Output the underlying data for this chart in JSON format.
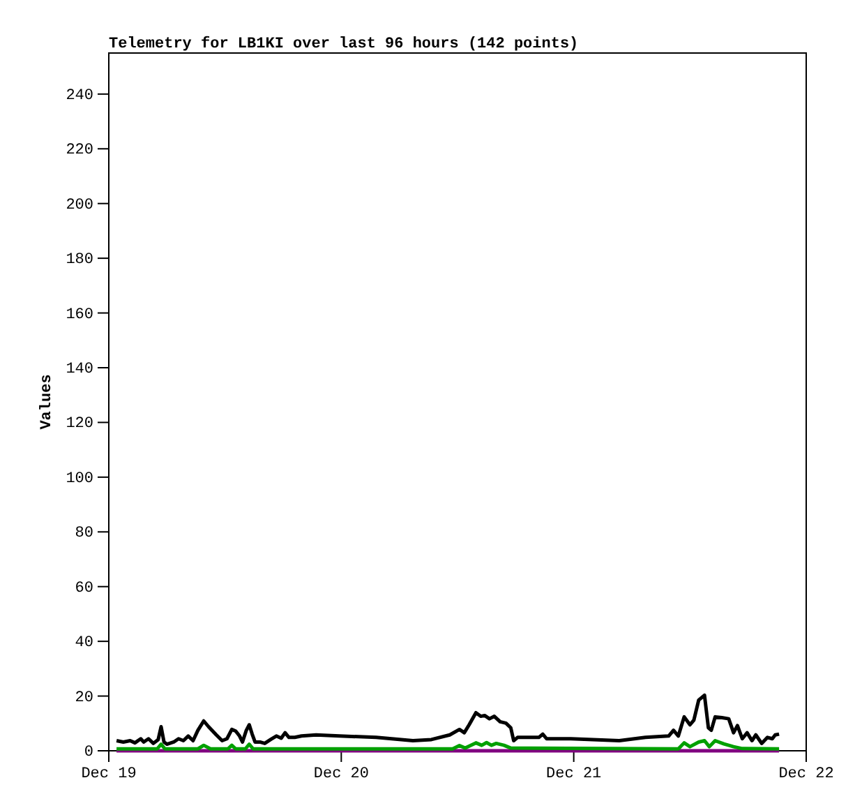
{
  "chart_data": {
    "type": "line",
    "title": "Telemetry for LB1KI over last 96 hours (142 points)",
    "ylabel": "Values",
    "xlim": [
      "--12-19",
      "--12-22"
    ],
    "xticks": [
      {
        "value": "--12-19",
        "label": "Dec 19"
      },
      {
        "value": "--12-20",
        "label": "Dec 20"
      },
      {
        "value": "--12-21",
        "label": "Dec 21"
      },
      {
        "value": "--12-22",
        "label": "Dec 22"
      }
    ],
    "ylim": [
      0,
      255
    ],
    "yticks": [
      0,
      20,
      40,
      60,
      80,
      100,
      120,
      140,
      160,
      180,
      200,
      220,
      240
    ],
    "marker": "none",
    "line_style": "solid",
    "series": [
      {
        "color": "#000000",
        "x": [
          "--12-19T00:48",
          "--12-19T01:30",
          "--12-19T02:12",
          "--12-19T02:42",
          "--12-19T03:18",
          "--12-19T03:36",
          "--12-19T04:06",
          "--12-19T04:36",
          "--12-19T05:06",
          "--12-19T05:24",
          "--12-19T05:42",
          "--12-19T06:00",
          "--12-19T06:42",
          "--12-19T07:12",
          "--12-19T07:42",
          "--12-19T08:12",
          "--12-19T08:42",
          "--12-19T09:12",
          "--12-19T09:48",
          "--12-19T10:18",
          "--12-19T11:06",
          "--12-19T11:42",
          "--12-19T12:12",
          "--12-19T12:42",
          "--12-19T13:06",
          "--12-19T13:30",
          "--12-19T13:48",
          "--12-19T14:12",
          "--12-19T14:30",
          "--12-19T14:48",
          "--12-19T15:06",
          "--12-19T15:36",
          "--12-19T16:06",
          "--12-19T16:42",
          "--12-19T17:18",
          "--12-19T17:48",
          "--12-19T18:12",
          "--12-19T18:36",
          "--12-19T19:12",
          "--12-19T19:54",
          "--12-19T21:24",
          "--12-19T23:48",
          "--12-20T03:36",
          "--12-20T07:24",
          "--12-20T09:18",
          "--12-20T11:12",
          "--12-20T12:12",
          "--12-20T12:42",
          "--12-20T13:12",
          "--12-20T13:54",
          "--12-20T14:24",
          "--12-20T14:48",
          "--12-20T15:18",
          "--12-20T15:48",
          "--12-20T16:24",
          "--12-20T17:00",
          "--12-20T17:30",
          "--12-20T17:48",
          "--12-20T18:12",
          "--12-20T20:24",
          "--12-20T20:48",
          "--12-20T21:12",
          "--12-20T23:42",
          "--12-21T04:42",
          "--12-21T07:24",
          "--12-21T09:48",
          "--12-21T10:18",
          "--12-21T10:48",
          "--12-21T11:24",
          "--12-21T12:00",
          "--12-21T12:24",
          "--12-21T12:54",
          "--12-21T13:30",
          "--12-21T13:54",
          "--12-21T14:12",
          "--12-21T14:36",
          "--12-21T15:18",
          "--12-21T16:00",
          "--12-21T16:30",
          "--12-21T16:54",
          "--12-21T17:24",
          "--12-21T17:54",
          "--12-21T18:24",
          "--12-21T18:48",
          "--12-21T19:24",
          "--12-21T20:00",
          "--12-21T20:30",
          "--12-21T20:48",
          "--12-21T21:12"
        ],
        "values": [
          3.7,
          3.2,
          3.7,
          2.9,
          4.4,
          3.2,
          4.4,
          2.7,
          4.1,
          8.8,
          3.2,
          2.4,
          3.2,
          4.4,
          3.7,
          5.4,
          3.7,
          7.5,
          10.9,
          8.8,
          5.8,
          3.7,
          4.4,
          7.8,
          7.2,
          5.4,
          3.2,
          7.5,
          9.5,
          6.1,
          3.2,
          3.2,
          2.7,
          4.1,
          5.4,
          4.6,
          6.6,
          4.9,
          4.9,
          5.4,
          5.8,
          5.4,
          4.9,
          3.7,
          4.1,
          5.8,
          7.8,
          6.6,
          9.5,
          13.9,
          12.6,
          12.9,
          11.7,
          12.6,
          10.6,
          10.1,
          8.4,
          3.7,
          4.9,
          4.9,
          6.1,
          4.4,
          4.4,
          3.7,
          4.9,
          5.4,
          7.5,
          5.4,
          12.4,
          9.5,
          11.2,
          18.5,
          20.3,
          8.4,
          7.5,
          12.4,
          12.1,
          11.7,
          6.6,
          9.2,
          4.4,
          6.6,
          3.7,
          5.8,
          2.7,
          4.9,
          4.4,
          5.8,
          6.1
        ]
      },
      {
        "color": "#00a000",
        "x": [
          "--12-19T00:48",
          "--12-19T05:00",
          "--12-19T05:24",
          "--12-19T05:48",
          "--12-19T09:12",
          "--12-19T09:48",
          "--12-19T10:30",
          "--12-19T12:18",
          "--12-19T12:42",
          "--12-19T13:06",
          "--12-19T14:06",
          "--12-19T14:30",
          "--12-19T14:54",
          "--12-20T11:30",
          "--12-20T12:12",
          "--12-20T12:48",
          "--12-20T13:54",
          "--12-20T14:30",
          "--12-20T15:00",
          "--12-20T15:30",
          "--12-20T16:00",
          "--12-20T16:48",
          "--12-20T17:30",
          "--12-21T10:48",
          "--12-21T11:24",
          "--12-21T12:00",
          "--12-21T12:54",
          "--12-21T13:30",
          "--12-21T14:00",
          "--12-21T14:36",
          "--12-21T15:30",
          "--12-21T16:30",
          "--12-21T17:24",
          "--12-21T21:12"
        ],
        "values": [
          0.7,
          0.7,
          2.4,
          0.7,
          0.7,
          2.0,
          0.7,
          0.7,
          2.0,
          0.7,
          0.7,
          2.4,
          0.7,
          0.7,
          1.9,
          1.0,
          2.9,
          2.0,
          3.0,
          2.0,
          2.7,
          2.0,
          1.0,
          0.7,
          2.9,
          1.5,
          3.2,
          3.7,
          1.5,
          3.7,
          2.5,
          1.5,
          0.8,
          0.7
        ]
      },
      {
        "color": "#800080",
        "x": [
          "--12-19T00:48",
          "--12-21T21:12"
        ],
        "values": [
          0,
          0
        ]
      }
    ]
  }
}
